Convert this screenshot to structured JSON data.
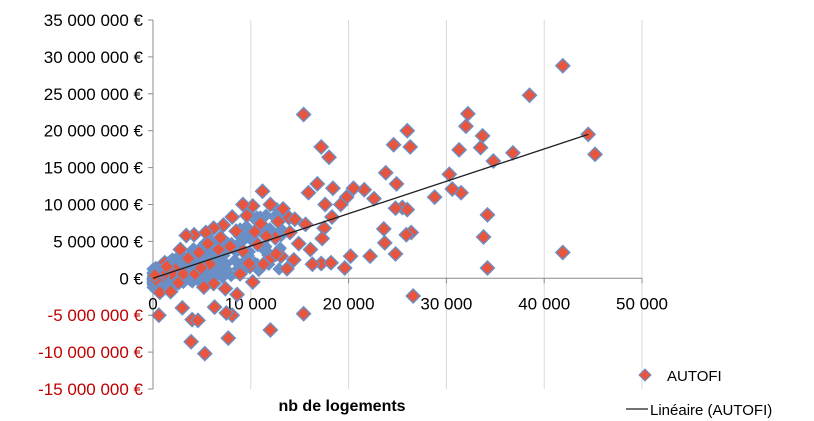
{
  "chart_data": {
    "type": "scatter",
    "xlabel": "nb de logements",
    "xlim": [
      0,
      50000
    ],
    "ylim": [
      -15000000,
      35000000
    ],
    "x_ticks": [
      {
        "value": 0,
        "label": "0"
      },
      {
        "value": 10000,
        "label": "10 000"
      },
      {
        "value": 20000,
        "label": "20 000"
      },
      {
        "value": 30000,
        "label": "30 000"
      },
      {
        "value": 40000,
        "label": "40 000"
      },
      {
        "value": 50000,
        "label": "50 000"
      }
    ],
    "y_ticks": [
      {
        "value": 35000000,
        "label": "35 000 000 €"
      },
      {
        "value": 30000000,
        "label": "30 000 000 €"
      },
      {
        "value": 25000000,
        "label": "25 000 000 €"
      },
      {
        "value": 20000000,
        "label": "20 000 000 €"
      },
      {
        "value": 15000000,
        "label": "15 000 000 €"
      },
      {
        "value": 10000000,
        "label": "10 000 000 €"
      },
      {
        "value": 5000000,
        "label": "5 000 000 €"
      },
      {
        "value": 0,
        "label": "0 €"
      },
      {
        "value": -5000000,
        "label": "-5 000 000 €"
      },
      {
        "value": -10000000,
        "label": "-10 000 000 €"
      },
      {
        "value": -15000000,
        "label": "-15 000 000 €"
      }
    ],
    "negative_tick_color": "#c00000",
    "grid": "vertical",
    "legend_position": "bottom-right",
    "series": [
      {
        "name": "AUTOFI",
        "marker": "diamond",
        "color": "#e8553f",
        "edge_color": "#6a8fc5",
        "points": [
          [
            41900,
            28800000
          ],
          [
            38500,
            24800000
          ],
          [
            44500,
            19500000
          ],
          [
            45200,
            16800000
          ],
          [
            36800,
            17000000
          ],
          [
            34800,
            15900000
          ],
          [
            32200,
            22300000
          ],
          [
            32000,
            20600000
          ],
          [
            33700,
            19300000
          ],
          [
            33500,
            17700000
          ],
          [
            31300,
            17400000
          ],
          [
            31500,
            11600000
          ],
          [
            30300,
            14100000
          ],
          [
            30600,
            12100000
          ],
          [
            28800,
            11000000
          ],
          [
            34200,
            8600000
          ],
          [
            33800,
            5600000
          ],
          [
            34200,
            1400000
          ],
          [
            41900,
            3500000
          ],
          [
            26600,
            -2400000
          ],
          [
            26000,
            20000000
          ],
          [
            26300,
            17800000
          ],
          [
            24600,
            18100000
          ],
          [
            23800,
            14300000
          ],
          [
            24900,
            12800000
          ],
          [
            25500,
            9600000
          ],
          [
            26000,
            9300000
          ],
          [
            24800,
            9500000
          ],
          [
            22600,
            10800000
          ],
          [
            23600,
            6700000
          ],
          [
            23700,
            4800000
          ],
          [
            24800,
            3300000
          ],
          [
            26400,
            6200000
          ],
          [
            25900,
            5900000
          ],
          [
            22200,
            3000000
          ],
          [
            19600,
            1400000
          ],
          [
            20200,
            3000000
          ],
          [
            21600,
            12000000
          ],
          [
            20500,
            12200000
          ],
          [
            19800,
            11000000
          ],
          [
            18400,
            12200000
          ],
          [
            19200,
            10000000
          ],
          [
            18000,
            16400000
          ],
          [
            17200,
            17800000
          ],
          [
            16800,
            12800000
          ],
          [
            15900,
            11600000
          ],
          [
            17600,
            10000000
          ],
          [
            18300,
            8300000
          ],
          [
            17500,
            6800000
          ],
          [
            17300,
            5400000
          ],
          [
            17200,
            2000000
          ],
          [
            16300,
            1900000
          ],
          [
            18200,
            2100000
          ],
          [
            15400,
            22200000
          ],
          [
            15400,
            -4800000
          ],
          [
            12000,
            -7000000
          ],
          [
            11200,
            11800000
          ],
          [
            10200,
            9800000
          ],
          [
            9200,
            10000000
          ],
          [
            8100,
            8300000
          ],
          [
            7200,
            7200000
          ],
          [
            6200,
            6800000
          ],
          [
            5400,
            6200000
          ],
          [
            4200,
            5900000
          ],
          [
            3400,
            5800000
          ],
          [
            2800,
            3900000
          ],
          [
            3000,
            -4000000
          ],
          [
            4000,
            -5600000
          ],
          [
            4600,
            -5700000
          ],
          [
            3900,
            -8600000
          ],
          [
            5300,
            -10200000
          ],
          [
            7700,
            -8100000
          ],
          [
            8100,
            -5000000
          ],
          [
            7500,
            -4700000
          ],
          [
            6300,
            -3900000
          ],
          [
            600,
            -5000000
          ],
          [
            700,
            -1900000
          ],
          [
            1800,
            -1800000
          ],
          [
            1200,
            2100000
          ],
          [
            9600,
            8500000
          ],
          [
            10400,
            6300000
          ],
          [
            12000,
            10000000
          ],
          [
            12800,
            7700000
          ],
          [
            13300,
            9400000
          ],
          [
            13900,
            8200000
          ],
          [
            14500,
            8000000
          ],
          [
            12500,
            5500000
          ],
          [
            14000,
            6200000
          ],
          [
            15600,
            7300000
          ],
          [
            14900,
            4700000
          ],
          [
            13100,
            3000000
          ],
          [
            12100,
            2800000
          ],
          [
            11300,
            1900000
          ],
          [
            9900,
            1600000
          ],
          [
            8900,
            600000
          ],
          [
            7400,
            -1400000
          ],
          [
            6200,
            -700000
          ],
          [
            5200,
            -1200000
          ],
          [
            5800,
            1900000
          ],
          [
            4700,
            3500000
          ],
          [
            3600,
            2700000
          ],
          [
            2300,
            1200000
          ],
          [
            2600,
            -600000
          ],
          [
            1900,
            600000
          ],
          [
            1000,
            300000
          ],
          [
            500,
            100000
          ],
          [
            300,
            -200000
          ],
          [
            200,
            400000
          ],
          [
            1400,
            1600000
          ],
          [
            3100,
            600000
          ],
          [
            4300,
            600000
          ],
          [
            6700,
            3900000
          ],
          [
            7900,
            4300000
          ],
          [
            9200,
            3700000
          ],
          [
            10700,
            4600000
          ],
          [
            11600,
            5700000
          ],
          [
            12600,
            3300000
          ],
          [
            14400,
            2500000
          ],
          [
            16100,
            3900000
          ],
          [
            8500,
            6400000
          ],
          [
            6900,
            5500000
          ],
          [
            5600,
            4700000
          ],
          [
            4900,
            1400000
          ],
          [
            9800,
            2000000
          ],
          [
            11000,
            7400000
          ],
          [
            10200,
            -500000
          ],
          [
            8600,
            -2200000
          ],
          [
            13700,
            1300000
          ]
        ]
      },
      {
        "name": "Linéaire (AUTOFI)",
        "type": "trendline",
        "color": "#1f1f1f",
        "from": [
          0,
          0
        ],
        "to": [
          44500,
          19500000
        ]
      }
    ]
  }
}
